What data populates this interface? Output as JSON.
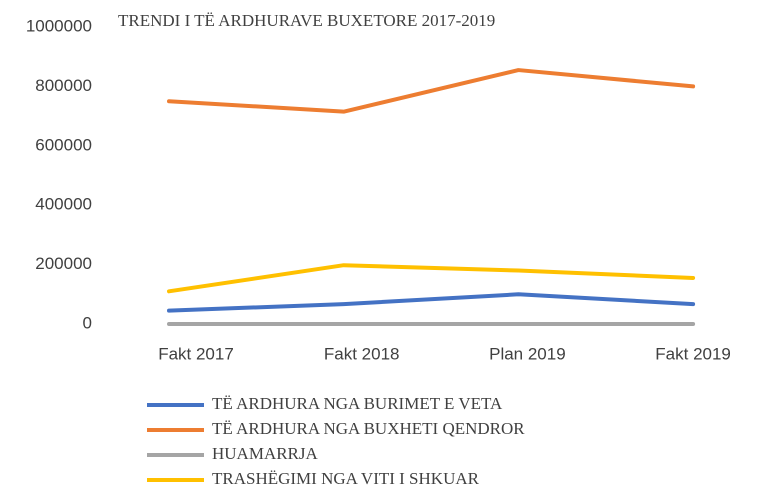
{
  "chart_data": {
    "type": "line",
    "title": "TRENDI I TË ARDHURAVE BUXETORE 2017-2019",
    "categories": [
      "Fakt 2017",
      "Fakt 2018",
      "Plan 2019",
      "Fakt 2019"
    ],
    "series": [
      {
        "name": "TË ARDHURA NGA BURIMET E VETA",
        "color": "#4472c4",
        "values": [
          45000,
          67000,
          100000,
          67000
        ]
      },
      {
        "name": "TË ARDHURA NGA BUXHETI QENDROR",
        "color": "#ed7d31",
        "values": [
          750000,
          715000,
          855000,
          800000
        ]
      },
      {
        "name": "HUAMARRJA",
        "color": "#a5a5a5",
        "values": [
          0,
          0,
          0,
          0
        ]
      },
      {
        "name": "TRASHËGIMI NGA VITI I SHKUAR",
        "color": "#ffc000",
        "values": [
          110000,
          198000,
          180000,
          155000
        ]
      }
    ],
    "ylim": [
      0,
      1000000
    ],
    "yticks": [
      0,
      200000,
      400000,
      600000,
      800000,
      1000000
    ],
    "grid": false,
    "legend": "bottom"
  }
}
